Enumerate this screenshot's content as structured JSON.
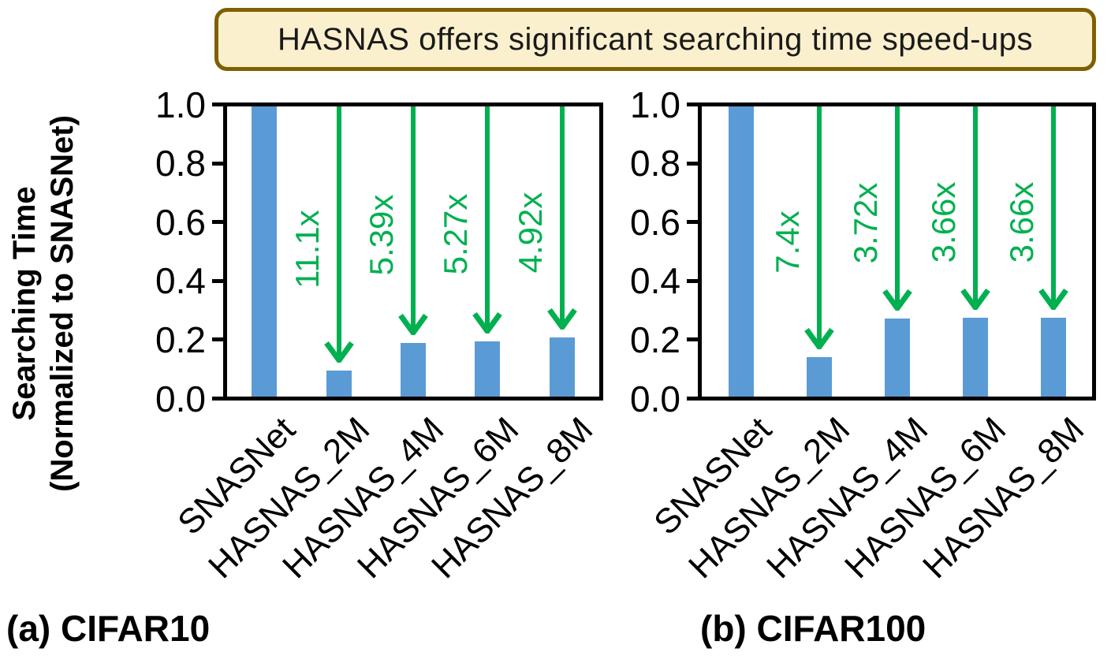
{
  "banner": {
    "text": "HASNAS offers significant searching time speed-ups"
  },
  "y_axis_title": {
    "line1": "Searching Time",
    "line2": "(Normalized to SNASNet)"
  },
  "colors": {
    "bar": "#5B9BD5",
    "arrow_green": "#00B050",
    "axis_black": "#000000",
    "banner_bg": "#FBF0CE",
    "banner_border": "#7F6000"
  },
  "chart_data": [
    {
      "type": "bar",
      "title": "(a) CIFAR10",
      "categories": [
        "SNASNet",
        "HASNAS_2M",
        "HASNAS_4M",
        "HASNAS_6M",
        "HASNAS_8M"
      ],
      "values": [
        1.0,
        0.09,
        0.186,
        0.19,
        0.203
      ],
      "speedup_annotations": [
        "",
        "11.1x",
        "5.39x",
        "5.27x",
        "4.92x"
      ],
      "ylabel": "Searching Time (Normalized to SNASNet)",
      "xlabel": "",
      "ylim": [
        0.0,
        1.0
      ],
      "yticks": [
        1.0,
        0.8,
        0.6,
        0.4,
        0.2,
        0.0
      ],
      "grid": false,
      "legend": null
    },
    {
      "type": "bar",
      "title": "(b) CIFAR100",
      "categories": [
        "SNASNet",
        "HASNAS_2M",
        "HASNAS_4M",
        "HASNAS_6M",
        "HASNAS_8M"
      ],
      "values": [
        1.0,
        0.135,
        0.269,
        0.273,
        0.273
      ],
      "speedup_annotations": [
        "",
        "7.4x",
        "3.72x",
        "3.66x",
        "3.66x"
      ],
      "ylabel": "Searching Time (Normalized to SNASNet)",
      "xlabel": "",
      "ylim": [
        0.0,
        1.0
      ],
      "yticks": [
        1.0,
        0.8,
        0.6,
        0.4,
        0.2,
        0.0
      ],
      "grid": false,
      "legend": null
    }
  ]
}
